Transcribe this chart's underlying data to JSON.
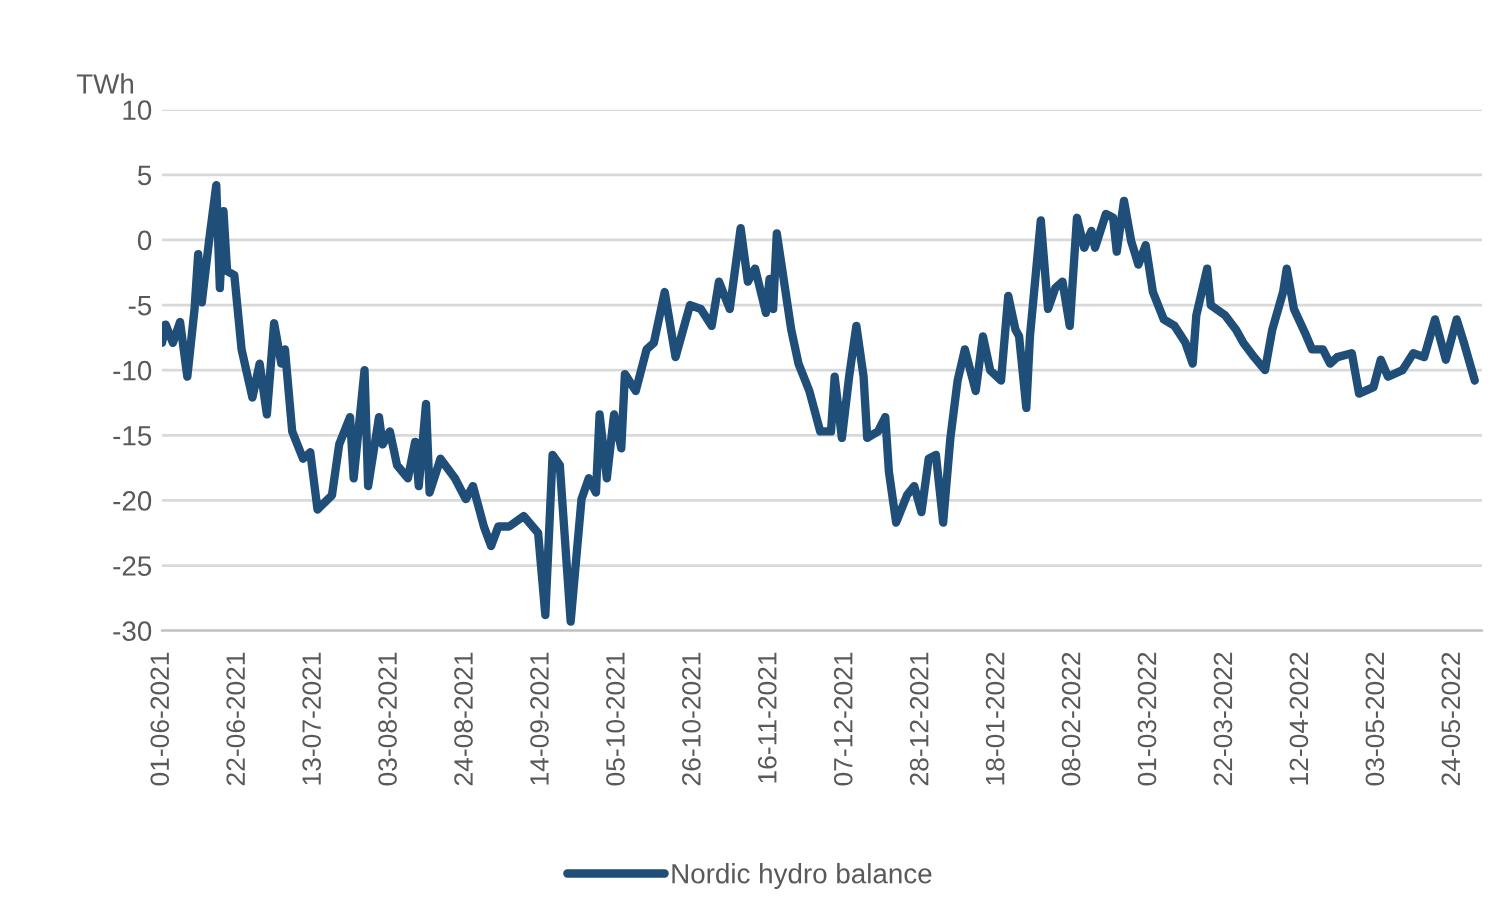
{
  "chart_data": {
    "type": "line",
    "ylabel": "TWh",
    "ylim": [
      -30,
      10
    ],
    "yticks": [
      -30,
      -25,
      -20,
      -15,
      -10,
      -5,
      0,
      5,
      10
    ],
    "xlim": [
      "2021-06-01",
      "2022-06-01"
    ],
    "xticks": [
      {
        "value": "2021-06-01",
        "label": "01-06-2021"
      },
      {
        "value": "2021-06-22",
        "label": "22-06-2021"
      },
      {
        "value": "2021-07-13",
        "label": "13-07-2021"
      },
      {
        "value": "2021-08-03",
        "label": "03-08-2021"
      },
      {
        "value": "2021-08-24",
        "label": "24-08-2021"
      },
      {
        "value": "2021-09-14",
        "label": "14-09-2021"
      },
      {
        "value": "2021-10-05",
        "label": "05-10-2021"
      },
      {
        "value": "2021-10-26",
        "label": "26-10-2021"
      },
      {
        "value": "2021-11-16",
        "label": "16-11-2021"
      },
      {
        "value": "2021-12-07",
        "label": "07-12-2021"
      },
      {
        "value": "2021-12-28",
        "label": "28-12-2021"
      },
      {
        "value": "2022-01-18",
        "label": "18-01-2022"
      },
      {
        "value": "2022-02-08",
        "label": "08-02-2022"
      },
      {
        "value": "2022-03-01",
        "label": "01-03-2022"
      },
      {
        "value": "2022-03-22",
        "label": "22-03-2022"
      },
      {
        "value": "2022-04-12",
        "label": "12-04-2022"
      },
      {
        "value": "2022-05-03",
        "label": "03-05-2022"
      },
      {
        "value": "2022-05-24",
        "label": "24-05-2022"
      }
    ],
    "grid": "y",
    "legend": "bottom",
    "line_style": "solid",
    "x": [
      "2021-06-01",
      "2021-06-02",
      "2021-06-04",
      "2021-06-06",
      "2021-06-08",
      "2021-06-10",
      "2021-06-11",
      "2021-06-12",
      "2021-06-14",
      "2021-06-16",
      "2021-06-17",
      "2021-06-18",
      "2021-06-19",
      "2021-06-21",
      "2021-06-23",
      "2021-06-26",
      "2021-06-28",
      "2021-06-30",
      "2021-07-02",
      "2021-07-04",
      "2021-07-05",
      "2021-07-07",
      "2021-07-10",
      "2021-07-12",
      "2021-07-14",
      "2021-07-18",
      "2021-07-20",
      "2021-07-23",
      "2021-07-24",
      "2021-07-27",
      "2021-07-28",
      "2021-07-31",
      "2021-08-01",
      "2021-08-03",
      "2021-08-05",
      "2021-08-08",
      "2021-08-10",
      "2021-08-11",
      "2021-08-13",
      "2021-08-14",
      "2021-08-17",
      "2021-08-21",
      "2021-08-24",
      "2021-08-26",
      "2021-08-29",
      "2021-08-31",
      "2021-09-02",
      "2021-09-05",
      "2021-09-09",
      "2021-09-13",
      "2021-09-15",
      "2021-09-17",
      "2021-09-19",
      "2021-09-22",
      "2021-09-25",
      "2021-09-27",
      "2021-09-29",
      "2021-09-30",
      "2021-10-02",
      "2021-10-04",
      "2021-10-06",
      "2021-10-07",
      "2021-10-10",
      "2021-10-13",
      "2021-10-15",
      "2021-10-18",
      "2021-10-21",
      "2021-10-25",
      "2021-10-28",
      "2021-10-31",
      "2021-11-02",
      "2021-11-05",
      "2021-11-08",
      "2021-11-10",
      "2021-11-12",
      "2021-11-15",
      "2021-11-16",
      "2021-11-17",
      "2021-11-18",
      "2021-11-20",
      "2021-11-22",
      "2021-11-24",
      "2021-11-27",
      "2021-11-30",
      "2021-12-03",
      "2021-12-04",
      "2021-12-06",
      "2021-12-08",
      "2021-12-10",
      "2021-12-12",
      "2021-12-13",
      "2021-12-16",
      "2021-12-18",
      "2021-12-19",
      "2021-12-21",
      "2021-12-24",
      "2021-12-26",
      "2021-12-28",
      "2021-12-30",
      "2022-01-01",
      "2022-01-03",
      "2022-01-05",
      "2022-01-07",
      "2022-01-09",
      "2022-01-12",
      "2022-01-14",
      "2022-01-16",
      "2022-01-19",
      "2022-01-21",
      "2022-01-23",
      "2022-01-24",
      "2022-01-26",
      "2022-01-27",
      "2022-01-30",
      "2022-02-01",
      "2022-02-03",
      "2022-02-05",
      "2022-02-07",
      "2022-02-09",
      "2022-02-11",
      "2022-02-13",
      "2022-02-14",
      "2022-02-17",
      "2022-02-19",
      "2022-02-20",
      "2022-02-22",
      "2022-02-24",
      "2022-02-26",
      "2022-02-28",
      "2022-03-02",
      "2022-03-05",
      "2022-03-08",
      "2022-03-11",
      "2022-03-13",
      "2022-03-14",
      "2022-03-17",
      "2022-03-18",
      "2022-03-22",
      "2022-03-25",
      "2022-03-27",
      "2022-03-30",
      "2022-04-02",
      "2022-04-04",
      "2022-04-07",
      "2022-04-08",
      "2022-04-10",
      "2022-04-13",
      "2022-04-15",
      "2022-04-18",
      "2022-04-20",
      "2022-04-22",
      "2022-04-26",
      "2022-04-28",
      "2022-05-02",
      "2022-05-04",
      "2022-05-06",
      "2022-05-10",
      "2022-05-13",
      "2022-05-16",
      "2022-05-19",
      "2022-05-22",
      "2022-05-25",
      "2022-05-27",
      "2022-05-30"
    ],
    "series": [
      {
        "name": "Nordic hydro balance",
        "color": "#1f4e79",
        "values": [
          -7.9,
          -6.5,
          -7.9,
          -6.3,
          -10.5,
          -5.3,
          -1.1,
          -4.8,
          -0.1,
          4.2,
          -3.7,
          2.2,
          -2.4,
          -2.7,
          -8.4,
          -12.1,
          -9.5,
          -13.4,
          -6.4,
          -9.5,
          -8.4,
          -14.7,
          -16.8,
          -16.3,
          -20.7,
          -19.6,
          -15.7,
          -13.6,
          -18.3,
          -10,
          -18.9,
          -13.6,
          -15.7,
          -14.7,
          -17.3,
          -18.3,
          -15.5,
          -18.9,
          -12.6,
          -19.4,
          -16.8,
          -18.3,
          -19.9,
          -18.9,
          -22,
          -23.5,
          -22,
          -22,
          -21.2,
          -22.5,
          -28.8,
          -16.5,
          -17.3,
          -29.3,
          -19.9,
          -18.3,
          -19.4,
          -13.4,
          -18.3,
          -13.4,
          -16,
          -10.3,
          -11.6,
          -8.4,
          -7.9,
          -4,
          -9,
          -5,
          -5.3,
          -6.6,
          -3.2,
          -5.3,
          0.9,
          -3.2,
          -2.2,
          -5.6,
          -3,
          -5.3,
          0.5,
          -3.2,
          -6.9,
          -9.5,
          -11.6,
          -14.7,
          -14.7,
          -10.5,
          -15.2,
          -10.5,
          -6.6,
          -10.5,
          -15.2,
          -14.7,
          -13.6,
          -17.8,
          -21.7,
          -19.6,
          -18.9,
          -20.9,
          -16.8,
          -16.5,
          -21.7,
          -15.2,
          -10.8,
          -8.4,
          -11.6,
          -7.4,
          -10,
          -10.8,
          -4.3,
          -6.9,
          -7.4,
          -12.9,
          -7.4,
          1.5,
          -5.3,
          -3.7,
          -3.2,
          -6.6,
          1.7,
          -0.6,
          0.7,
          -0.6,
          2,
          1.7,
          -0.9,
          3,
          -0.1,
          -1.9,
          -0.4,
          -4,
          -6.1,
          -6.6,
          -7.9,
          -9.5,
          -5.8,
          -2.2,
          -5,
          -5.8,
          -6.9,
          -7.9,
          -9,
          -10,
          -6.9,
          -4,
          -2.2,
          -5.3,
          -7.1,
          -8.4,
          -8.4,
          -9.5,
          -9,
          -8.7,
          -11.8,
          -11.3,
          -9.2,
          -10.5,
          -10,
          -8.7,
          -9,
          -6.1,
          -9.2,
          -6.1,
          -7.9,
          -10.8
        ]
      }
    ]
  }
}
